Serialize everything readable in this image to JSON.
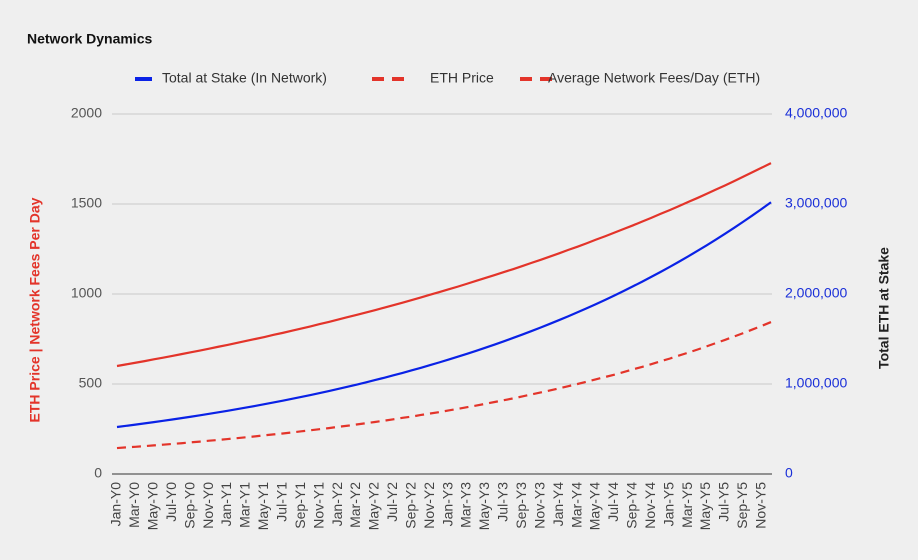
{
  "chart_data": {
    "type": "line",
    "title": "Network Dynamics",
    "ylabel": "ETH Price | Network Fees Per Day",
    "y2label": "Total ETH at Stake",
    "categories": [
      "Jan-Y0",
      null,
      "Mar-Y0",
      null,
      "May-Y0",
      null,
      "Jul-Y0",
      null,
      "Sep-Y0",
      null,
      "Nov-Y0",
      null,
      "Jan-Y1",
      null,
      "Mar-Y1",
      null,
      "May-Y1",
      null,
      "Jul-Y1",
      null,
      "Sep-Y1",
      null,
      "Nov-Y1",
      null,
      "Jan-Y2",
      null,
      "Mar-Y2",
      null,
      "May-Y2",
      null,
      "Jul-Y2",
      null,
      "Sep-Y2",
      null,
      "Nov-Y2",
      null,
      "Jan-Y3",
      null,
      "Mar-Y3",
      null,
      "May-Y3",
      null,
      "Jul-Y3",
      null,
      "Sep-Y3",
      null,
      "Nov-Y3",
      null,
      "Jan-Y4",
      null,
      "Mar-Y4",
      null,
      "May-Y4",
      null,
      "Jul-Y4",
      null,
      "Sep-Y4",
      null,
      "Nov-Y4",
      null,
      "Jan-Y5",
      null,
      "Mar-Y5",
      null,
      "May-Y5",
      null,
      "Jul-Y5",
      null,
      "Sep-Y5",
      null,
      "Nov-Y5",
      null
    ],
    "series": [
      {
        "name": "Total at Stake (In Network)",
        "color": "#0a22e6",
        "axis": "y2",
        "dashed": false,
        "values": [
          522000,
          535100,
          548500,
          562200,
          576300,
          590700,
          605500,
          620700,
          636200,
          652100,
          668400,
          685100,
          702300,
          719900,
          737900,
          756400,
          775300,
          794700,
          814600,
          835000,
          855900,
          877300,
          899300,
          921800,
          944900,
          968600,
          992800,
          1017700,
          1043200,
          1069300,
          1096100,
          1123500,
          1151600,
          1180400,
          1209900,
          1240200,
          1271300,
          1303100,
          1335700,
          1369100,
          1403400,
          1438500,
          1474500,
          1511400,
          1549200,
          1588000,
          1627800,
          1668500,
          1710300,
          1753100,
          1797000,
          1842000,
          1888100,
          1935300,
          1983700,
          2033400,
          2084300,
          2136500,
          2189900,
          2244700,
          2300900,
          2358500,
          2417500,
          2478000,
          2540000,
          2603600,
          2668800,
          2735600,
          2804100,
          2874300,
          2946200,
          3019900
        ]
      },
      {
        "name": "ETH Price",
        "color": "#e3342a",
        "dashed": false,
        "values": [
          600,
          609,
          618,
          627,
          637,
          646,
          656,
          666,
          676,
          686,
          696,
          707,
          717,
          728,
          739,
          750,
          761,
          773,
          784,
          796,
          808,
          820,
          833,
          845,
          858,
          871,
          884,
          897,
          910,
          924,
          938,
          952,
          966,
          981,
          996,
          1011,
          1026,
          1041,
          1057,
          1073,
          1089,
          1105,
          1122,
          1138,
          1155,
          1173,
          1190,
          1208,
          1226,
          1245,
          1263,
          1282,
          1302,
          1321,
          1341,
          1361,
          1381,
          1402,
          1423,
          1445,
          1466,
          1488,
          1511,
          1533,
          1556,
          1580,
          1603,
          1627,
          1652,
          1677,
          1702,
          1727
        ]
      },
      {
        "name": "Average Network Fees/Day (ETH)",
        "color": "#e3342a",
        "dashed": true,
        "values": [
          144,
          148,
          151,
          155,
          159,
          163,
          167,
          171,
          176,
          180,
          185,
          189,
          194,
          199,
          204,
          209,
          215,
          220,
          225,
          231,
          237,
          243,
          249,
          255,
          262,
          268,
          275,
          282,
          289,
          296,
          304,
          312,
          319,
          328,
          336,
          344,
          353,
          362,
          371,
          380,
          390,
          400,
          410,
          420,
          431,
          442,
          453,
          464,
          476,
          488,
          500,
          513,
          526,
          539,
          552,
          566,
          581,
          595,
          610,
          626,
          641,
          658,
          674,
          691,
          709,
          727,
          745,
          764,
          783,
          803,
          823,
          844
        ]
      }
    ],
    "ylim": [
      0,
      2000
    ],
    "yticks": [
      0,
      500,
      1000,
      1500,
      2000
    ],
    "y2lim": [
      0,
      4000000
    ],
    "y2ticks": [
      0,
      {
        "value": 1000000,
        "label": "1,000,000"
      },
      {
        "value": 2000000,
        "label": "2,000,000"
      },
      {
        "value": 3000000,
        "label": "3,000,000"
      },
      {
        "value": 4000000,
        "label": "4,000,000"
      }
    ],
    "grid": true
  }
}
